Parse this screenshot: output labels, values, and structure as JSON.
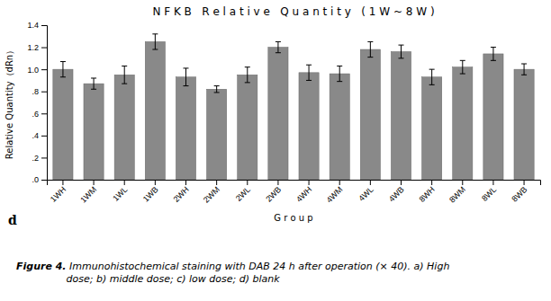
{
  "chart_data": {
    "type": "bar",
    "title": "N F K B   R e l a t i v e   Q u a n t i t y   ( 1 W ~ 8 W )",
    "xlabel": "G r o u p",
    "ylabel": "Relative Quantity（dRn）",
    "categories": [
      "1WH",
      "1WM",
      "1WL",
      "1WB",
      "2WH",
      "2WM",
      "2WL",
      "2WB",
      "4WH",
      "4WM",
      "4WL",
      "4WB",
      "8WH",
      "8WM",
      "8WL",
      "8WB"
    ],
    "values": [
      1.0,
      0.87,
      0.95,
      1.25,
      0.93,
      0.82,
      0.95,
      1.2,
      0.97,
      0.96,
      1.18,
      1.16,
      0.93,
      1.02,
      1.14,
      1.0
    ],
    "errors": [
      0.07,
      0.05,
      0.08,
      0.07,
      0.08,
      0.03,
      0.07,
      0.05,
      0.07,
      0.07,
      0.07,
      0.06,
      0.07,
      0.06,
      0.06,
      0.05
    ],
    "color": "#898989",
    "ylim": [
      0,
      1.4
    ],
    "yticks": [
      {
        "value": 0,
        "label": ".0"
      },
      {
        "value": 0.2,
        "label": ".2"
      },
      {
        "value": 0.4,
        "label": ".4"
      },
      {
        "value": 0.6,
        "label": ".6"
      },
      {
        "value": 0.8,
        "label": ".8"
      },
      {
        "value": 1,
        "label": "1.0"
      },
      1.2,
      1.4
    ],
    "grid": false,
    "annotations": [
      "d",
      "Figure 4.",
      " Immunohistochemical staining with DAB 24 h after operation (× 40). a) High\ndose; b) middle dose; c) low dose; d) blank"
    ]
  }
}
